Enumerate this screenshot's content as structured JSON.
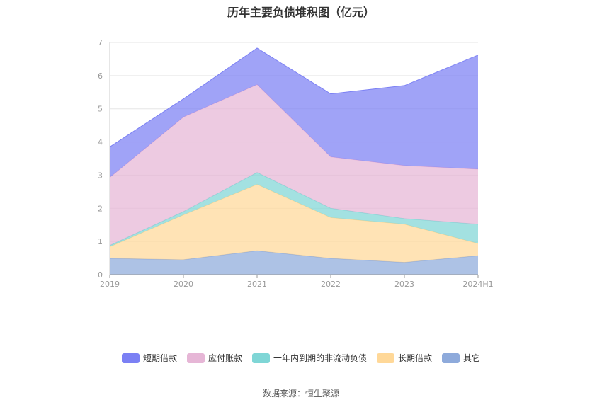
{
  "chart_data": {
    "type": "area",
    "stacked": true,
    "title": "历年主要负债堆积图（亿元）",
    "categories": [
      "2019",
      "2020",
      "2021",
      "2022",
      "2023",
      "2024H1"
    ],
    "ylim": [
      0,
      7
    ],
    "yticks": [
      "0",
      "1",
      "2",
      "3",
      "4",
      "5",
      "6",
      "7"
    ],
    "grid": true,
    "legend_position": "bottom",
    "series": [
      {
        "name": "其它",
        "color": "#8eaadb",
        "values": [
          0.49,
          0.45,
          0.72,
          0.49,
          0.37,
          0.57
        ]
      },
      {
        "name": "长期借款",
        "color": "#ffd898",
        "values": [
          0.35,
          1.35,
          2.0,
          1.23,
          1.15,
          0.37
        ]
      },
      {
        "name": "一年内到期的非流动负债",
        "color": "#7fd6d6",
        "values": [
          0.04,
          0.1,
          0.36,
          0.28,
          0.17,
          0.58
        ]
      },
      {
        "name": "应付账款",
        "color": "#e6b6d6",
        "values": [
          2.05,
          2.85,
          2.65,
          1.55,
          1.6,
          1.66
        ]
      },
      {
        "name": "短期借款",
        "color": "#7b80f4",
        "values": [
          0.92,
          0.55,
          1.1,
          1.9,
          2.41,
          3.44
        ]
      }
    ]
  },
  "legend_order": [
    "短期借款",
    "应付账款",
    "一年内到期的非流动负债",
    "长期借款",
    "其它"
  ],
  "source": "数据来源：恒生聚源"
}
